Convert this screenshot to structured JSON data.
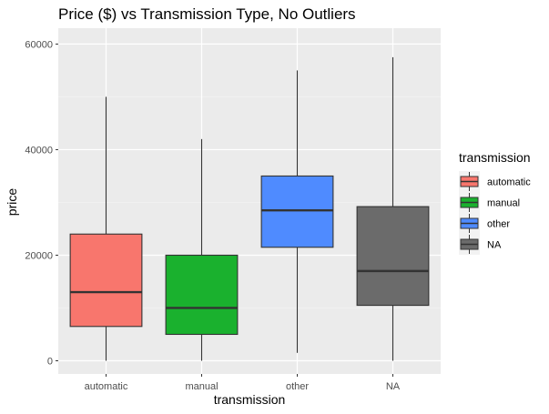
{
  "chart_data": {
    "type": "boxplot",
    "title": "Price ($) vs Transmission Type, No Outliers",
    "xlabel": "transmission",
    "ylabel": "price",
    "ylim": [
      -2500,
      63000
    ],
    "yticks": [
      0,
      20000,
      40000,
      60000
    ],
    "yticklabels": [
      "0",
      "20000",
      "40000",
      "60000"
    ],
    "categories": [
      "automatic",
      "manual",
      "other",
      "NA"
    ],
    "boxes": [
      {
        "category": "automatic",
        "min": 0,
        "q1": 6500,
        "median": 13000,
        "q3": 24000,
        "max": 50000,
        "color": "#F8766D"
      },
      {
        "category": "manual",
        "min": 0,
        "q1": 5000,
        "median": 10000,
        "q3": 20000,
        "max": 42000,
        "color": "#1AB12E"
      },
      {
        "category": "other",
        "min": 1500,
        "q1": 21500,
        "median": 28500,
        "q3": 35000,
        "max": 55000,
        "color": "#4F8BFF"
      },
      {
        "category": "NA",
        "min": 0,
        "q1": 10500,
        "median": 17000,
        "q3": 29200,
        "max": 57500,
        "color": "#6B6B6B"
      }
    ],
    "grid": true,
    "legend": {
      "title": "transmission",
      "position": "right",
      "entries": [
        "automatic",
        "manual",
        "other",
        "NA"
      ]
    }
  }
}
